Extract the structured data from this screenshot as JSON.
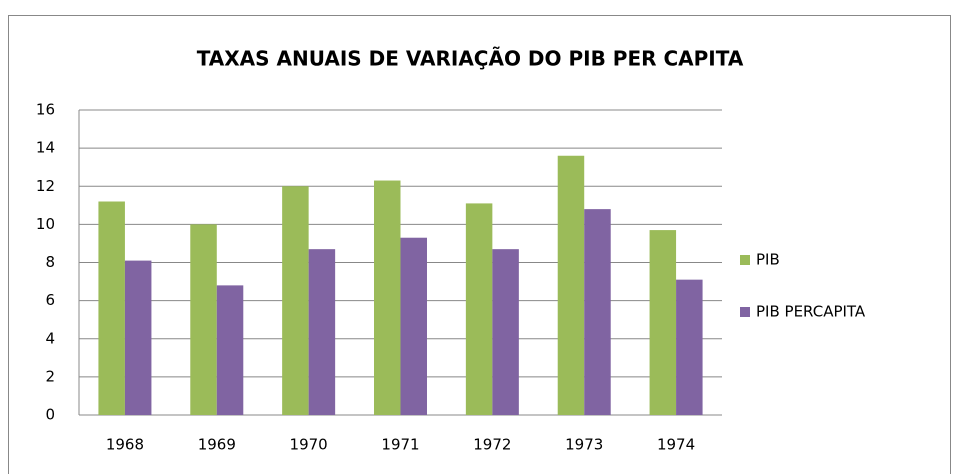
{
  "chart_data": {
    "type": "bar",
    "title": "TAXAS ANUAIS DE VARIAÇÃO DO PIB PER CAPITA",
    "categories": [
      "1968",
      "1969",
      "1970",
      "1971",
      "1972",
      "1973",
      "1974"
    ],
    "series": [
      {
        "name": "PIB",
        "color": "#9bbb59",
        "values": [
          11.2,
          10.0,
          12.0,
          12.3,
          11.1,
          13.6,
          9.7
        ]
      },
      {
        "name": "PIB PERCAPITA",
        "color": "#8064a2",
        "values": [
          8.1,
          6.8,
          8.7,
          9.3,
          8.7,
          10.8,
          7.1
        ]
      }
    ],
    "ylim": [
      0,
      16
    ],
    "yticks": [
      0,
      2,
      4,
      6,
      8,
      10,
      12,
      14,
      16
    ],
    "grid": true,
    "legend": "right"
  }
}
